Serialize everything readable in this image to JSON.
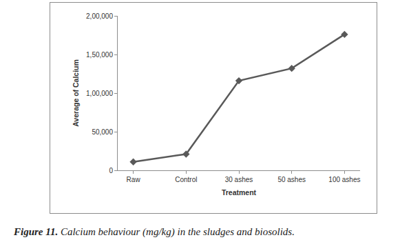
{
  "chart_data": {
    "type": "line",
    "caption": "Figure 11. Calcium behaviour (mg/kg) in the sludges and biosolids.",
    "x_label": "Treatment",
    "y_label": "Average of Calcium",
    "categories": [
      "Raw",
      "Control",
      "30 ashes",
      "50 ashes",
      "100 ashes"
    ],
    "values": [
      11000,
      21000,
      116000,
      132000,
      176000
    ],
    "color": "#595959",
    "marker": "diamond",
    "ylim": [
      0,
      200000
    ],
    "yticks": [
      0,
      {
        "value": 50000,
        "label": "50,000"
      },
      {
        "value": 100000,
        "label": "1,00,000"
      },
      {
        "value": 150000,
        "label": "1,50,000"
      },
      {
        "value": 200000,
        "label": "2,00,000"
      }
    ],
    "grid": false
  }
}
